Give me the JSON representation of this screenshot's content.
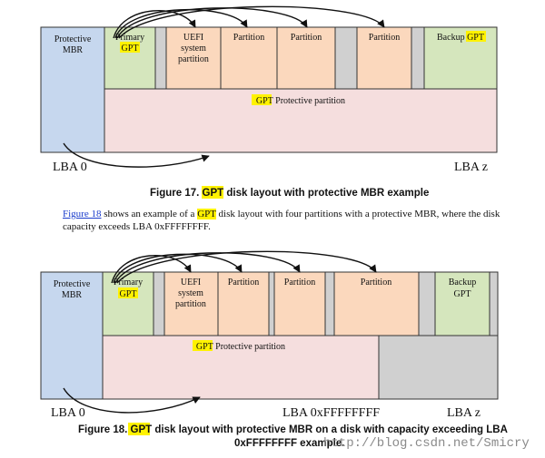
{
  "figure17": {
    "blocks": {
      "protective_mbr": [
        "Protective",
        "MBR"
      ],
      "primary_gpt": [
        "Primary",
        "GPT"
      ],
      "uefi": [
        "UEFI",
        "system",
        "partition"
      ],
      "partition": "Partition",
      "backup_gpt": "Backup GPT",
      "protective_partition": "GPT Protective partition"
    },
    "lba_start": "LBA 0",
    "lba_end": "LBA z",
    "caption": {
      "prefix": "Figure 17. ",
      "gpt": "GPT",
      "rest": " disk layout with protective MBR example"
    }
  },
  "paragraph": {
    "link": "Figure 18",
    "text1": " shows an example of a ",
    "gpt": "GPT",
    "text2": " disk layout with four partitions with a protective MBR, where the disk capacity exceeds LBA 0xFFFFFFFF."
  },
  "figure18": {
    "blocks": {
      "protective_mbr": [
        "Protective",
        "MBR"
      ],
      "primary_gpt": [
        "Primary",
        "GPT"
      ],
      "uefi": [
        "UEFI",
        "system",
        "partition"
      ],
      "partition": "Partition",
      "backup_gpt": [
        "Backup",
        "GPT"
      ],
      "protective_partition": "GPT Protective partition"
    },
    "lba_start": "LBA 0",
    "lba_mid": "LBA 0xFFFFFFFF",
    "lba_end": "LBA z",
    "caption_line1": {
      "prefix": "Figure 18. ",
      "gpt": "GPT",
      "rest": " disk layout with protective MBR on a disk with capacity exceeding LBA"
    },
    "caption_line2": "0xFFFFFFFF example."
  },
  "watermark": "http://blog.csdn.net/Smicry",
  "colors": {
    "mbr": "#c6d7ee",
    "gpt_green": "#d5e6bd",
    "partition": "#fbd8bd",
    "gap": "#d0d0d0",
    "protective": "#f5dede",
    "highlight": "#fff200"
  }
}
